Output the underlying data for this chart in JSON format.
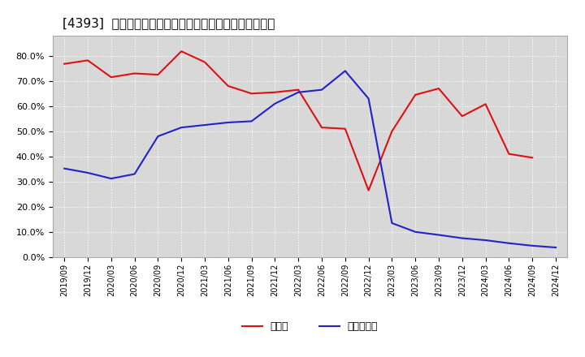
{
  "title": "[4393]  現預金、有利子負債の総資産に対する比率の推移",
  "ylim": [
    0.0,
    0.88
  ],
  "yticks": [
    0.0,
    0.1,
    0.2,
    0.3,
    0.4,
    0.5,
    0.6,
    0.7,
    0.8
  ],
  "background_color": "#ffffff",
  "plot_bg_color": "#d8d8d8",
  "grid_color": "#ffffff",
  "cash_color": "#dd1111",
  "debt_color": "#2222cc",
  "legend_cash": "現預金",
  "legend_debt": "有利子負債",
  "dates_cash": [
    "2019/09",
    "2019/12",
    "2020/03",
    "2020/06",
    "2020/09",
    "2020/12",
    "2021/03",
    "2021/06",
    "2021/09",
    "2021/12",
    "2022/03",
    "2022/06",
    "2022/09",
    "2022/12",
    "2023/03",
    "2023/06",
    "2023/09",
    "2023/12",
    "2024/03",
    "2024/06",
    "2024/09"
  ],
  "values_cash": [
    0.768,
    0.782,
    0.715,
    0.73,
    0.725,
    0.818,
    0.775,
    0.68,
    0.65,
    0.655,
    0.665,
    0.515,
    0.51,
    0.265,
    0.5,
    0.645,
    0.67,
    0.56,
    0.608,
    0.41,
    0.395
  ],
  "dates_debt": [
    "2019/09",
    "2019/12",
    "2020/03",
    "2020/06",
    "2020/09",
    "2020/12",
    "2021/03",
    "2021/06",
    "2021/09",
    "2021/12",
    "2022/03",
    "2022/06",
    "2022/09",
    "2022/12",
    "2023/03",
    "2023/06",
    "2023/09",
    "2023/12",
    "2024/03",
    "2024/06",
    "2024/09",
    "2024/12"
  ],
  "values_debt": [
    0.352,
    0.335,
    0.312,
    0.33,
    0.48,
    0.515,
    0.525,
    0.535,
    0.54,
    0.61,
    0.655,
    0.665,
    0.74,
    0.63,
    0.135,
    0.1,
    0.088,
    0.075,
    0.067,
    0.055,
    0.045,
    0.038
  ],
  "xtick_labels": [
    "2019/09",
    "2019/12",
    "2020/03",
    "2020/06",
    "2020/09",
    "2020/12",
    "2021/03",
    "2021/06",
    "2021/09",
    "2021/12",
    "2022/03",
    "2022/06",
    "2022/09",
    "2022/12",
    "2023/03",
    "2023/06",
    "2023/09",
    "2023/12",
    "2024/03",
    "2024/06",
    "2024/09",
    "2024/12"
  ],
  "title_fontsize": 11,
  "axis_fontsize": 7,
  "legend_fontsize": 9,
  "line_width": 1.5
}
